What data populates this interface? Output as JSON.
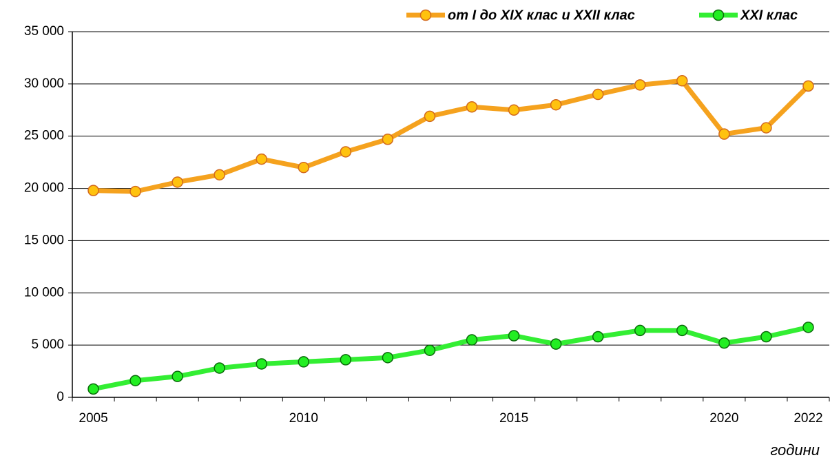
{
  "chart_data": {
    "type": "line",
    "x_label": "години",
    "categories": [
      "2005",
      null,
      null,
      null,
      null,
      "2010",
      null,
      null,
      null,
      null,
      "2015",
      null,
      null,
      null,
      null,
      "2020",
      null,
      "2022"
    ],
    "series": [
      {
        "name": "от I до XIX клас и XXII клас",
        "color": "#f5a21e",
        "marker_color": "#ffc20e",
        "values": [
          19800,
          19700,
          20600,
          21300,
          22800,
          22000,
          23500,
          24700,
          26900,
          27800,
          27500,
          28000,
          29000,
          29900,
          30300,
          25200,
          25800,
          29800
        ]
      },
      {
        "name": "XXI клас",
        "color": "#33ee33",
        "marker_color": "#22ee22",
        "values": [
          800,
          1600,
          2000,
          2800,
          3200,
          3400,
          3600,
          3800,
          4500,
          5500,
          5900,
          5100,
          5800,
          6400,
          6400,
          5200,
          5800,
          6700
        ]
      }
    ],
    "ylim": [
      0,
      35000
    ],
    "yticks": [
      0,
      {
        "value": 5000,
        "label": "5 000"
      },
      {
        "value": 10000,
        "label": "10 000"
      },
      {
        "value": 15000,
        "label": "15 000"
      },
      {
        "value": 20000,
        "label": "20 000"
      },
      {
        "value": 25000,
        "label": "25 000"
      },
      {
        "value": 30000,
        "label": "30 000"
      },
      {
        "value": 35000,
        "label": "35 000"
      }
    ],
    "grid": true,
    "legend": "top-right"
  }
}
